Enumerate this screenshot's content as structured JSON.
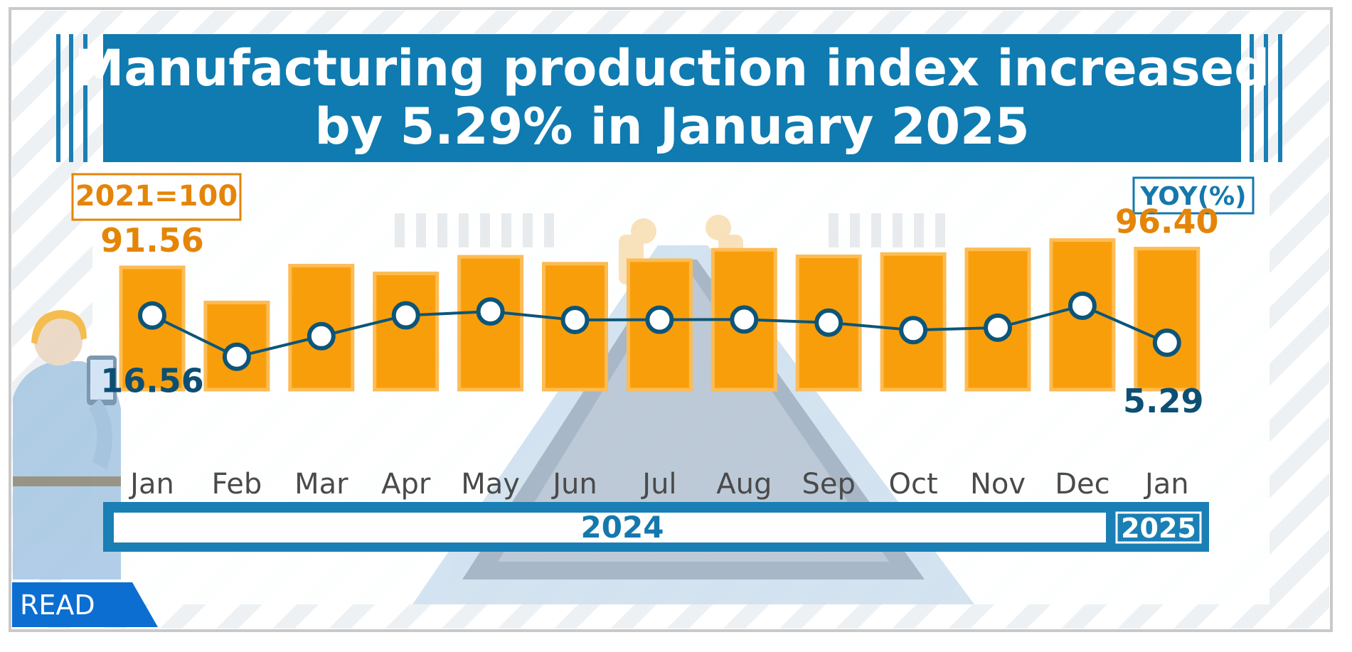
{
  "title_line1": "Manufacturing production index increased",
  "title_line2": "by 5.29% in January 2025",
  "index_base_label": "2021=100",
  "yoy_label": "YOY(%)",
  "read_badge": "READ",
  "colors": {
    "title_bg": "#0f7bb0",
    "bar": "#f99e0b",
    "bar_edge": "#fcbc55",
    "line": "#0d5578",
    "value_orange": "#e48508",
    "value_blue": "#0d4f73",
    "year_band": "#1a7fb4",
    "year_text": "#1578ad"
  },
  "chart_data": {
    "type": "bar",
    "categories": [
      "Jan",
      "Feb",
      "Mar",
      "Apr",
      "May",
      "Jun",
      "Jul",
      "Aug",
      "Sep",
      "Oct",
      "Nov",
      "Dec",
      "Jan"
    ],
    "year_groups": [
      {
        "label": "2024",
        "from": 0,
        "to": 11
      },
      {
        "label": "2025",
        "from": 12,
        "to": 12
      }
    ],
    "series": [
      {
        "name": "2021=100",
        "type": "bar",
        "values": [
          91.56,
          82.5,
          92.0,
          90.0,
          94.3,
          92.5,
          93.4,
          96.1,
          94.4,
          95.0,
          96.2,
          98.6,
          96.4
        ],
        "labels": [
          {
            "index": 0,
            "text": "91.56"
          },
          {
            "index": 12,
            "text": "96.40"
          }
        ]
      },
      {
        "name": "YOY(%)",
        "type": "line",
        "values": [
          16.56,
          -0.5,
          8.0,
          16.6,
          18.2,
          14.7,
          14.8,
          14.9,
          13.6,
          10.5,
          11.5,
          20.6,
          5.29
        ],
        "labels": [
          {
            "index": 0,
            "text": "16.56"
          },
          {
            "index": 12,
            "text": "5.29"
          }
        ]
      }
    ],
    "bar_ylim": [
      60,
      100
    ],
    "line_ylim": [
      -25,
      50
    ],
    "grid": false,
    "legend": "none"
  }
}
